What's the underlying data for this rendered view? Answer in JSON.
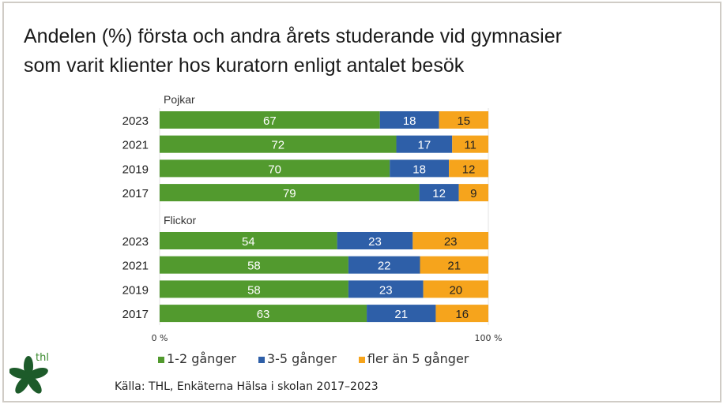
{
  "title_lines": [
    "Andelen (%) första och andra årets studerande vid gymnasier",
    "som varit klienter hos kuratorn enligt antalet besök"
  ],
  "logo_text": "thl",
  "source": "Källa: THL, Enkäterna Hälsa i skolan 2017–2023",
  "chart_data": {
    "type": "bar",
    "orientation": "horizontal",
    "stacked": true,
    "xlim": [
      0,
      100
    ],
    "x_ticks": [
      "0 %",
      "100 %"
    ],
    "colors": {
      "1-2 gånger": "#529a2e",
      "3-5 gånger": "#2e5fa8",
      "fler än 5 gånger": "#f6a41c"
    },
    "legend": [
      "1-2 gånger",
      "3-5 gånger",
      "fler än 5 gånger"
    ],
    "legend_position": "bottom",
    "groups": [
      {
        "name": "Pojkar",
        "categories": [
          "2023",
          "2021",
          "2019",
          "2017"
        ],
        "series": [
          {
            "name": "1-2 gånger",
            "values": [
              67,
              72,
              70,
              79
            ]
          },
          {
            "name": "3-5 gånger",
            "values": [
              18,
              17,
              18,
              12
            ]
          },
          {
            "name": "fler än 5 gånger",
            "values": [
              15,
              11,
              12,
              9
            ]
          }
        ]
      },
      {
        "name": "Flickor",
        "categories": [
          "2023",
          "2021",
          "2019",
          "2017"
        ],
        "series": [
          {
            "name": "1-2 gånger",
            "values": [
              54,
              58,
              58,
              63
            ]
          },
          {
            "name": "3-5 gånger",
            "values": [
              23,
              22,
              23,
              21
            ]
          },
          {
            "name": "fler än 5 gånger",
            "values": [
              23,
              21,
              20,
              16
            ]
          }
        ]
      }
    ]
  }
}
